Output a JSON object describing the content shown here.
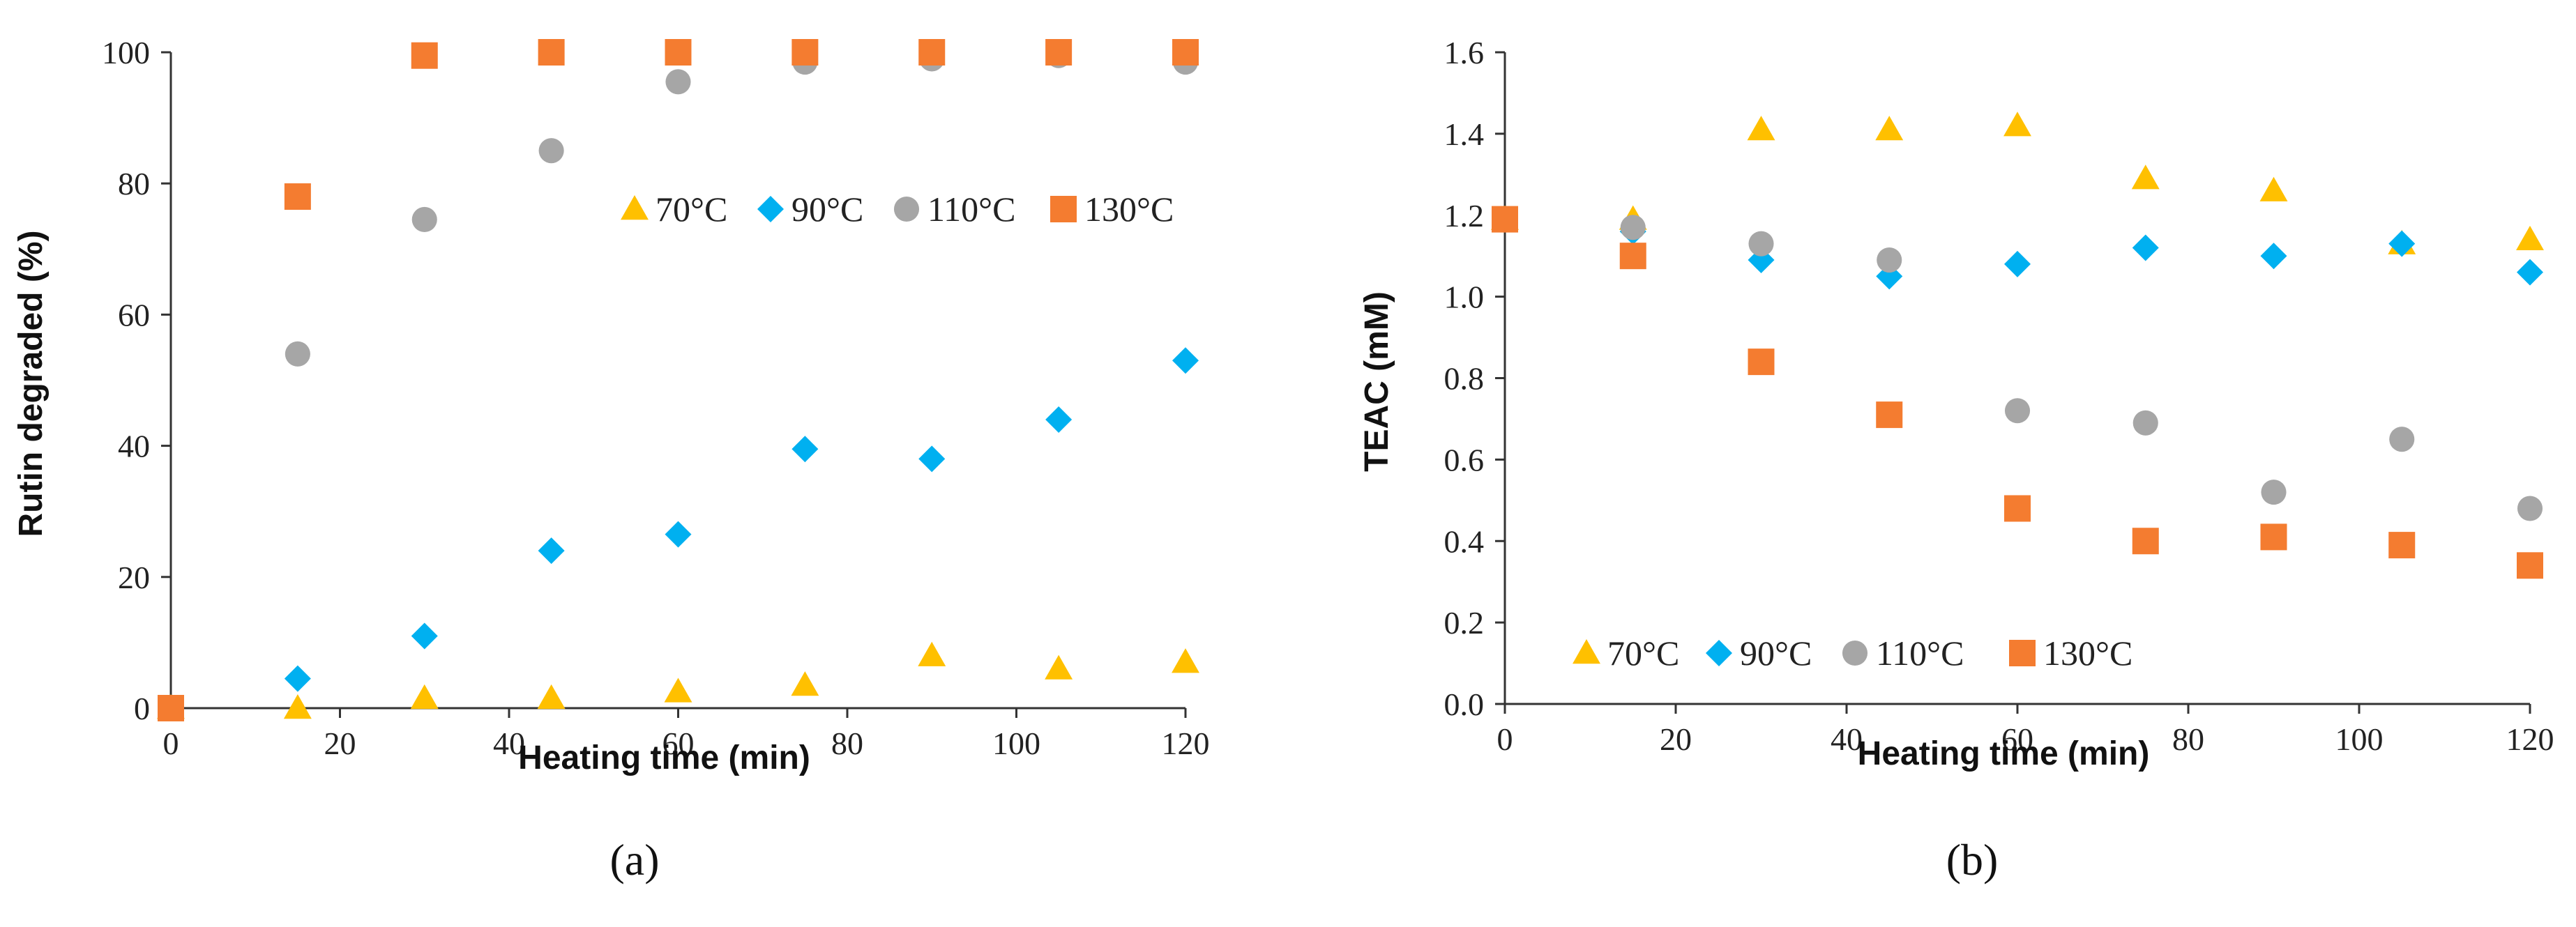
{
  "chart_data": [
    {
      "type": "scatter",
      "panel_label": "(a)",
      "title": "",
      "xlabel": "Heating time (min)",
      "ylabel": "Rutin degraded (%)",
      "xlim": [
        0,
        120
      ],
      "ylim": [
        0,
        100
      ],
      "xticks": [
        0,
        20,
        40,
        60,
        80,
        100,
        120
      ],
      "yticks": [
        0,
        20,
        40,
        60,
        80,
        100
      ],
      "x": [
        0,
        15,
        30,
        45,
        60,
        75,
        90,
        105,
        120
      ],
      "grid": false,
      "legend_position": "inside-right",
      "series": [
        {
          "name": "70°C",
          "marker": "triangle",
          "color": "#FFC000",
          "values": [
            0,
            0,
            1.5,
            1.5,
            2.5,
            3.5,
            8,
            6,
            7
          ]
        },
        {
          "name": "90°C",
          "marker": "diamond",
          "color": "#00B0F0",
          "values": [
            0,
            4.5,
            11,
            24,
            26.5,
            39.5,
            38,
            44,
            53
          ]
        },
        {
          "name": "110°C",
          "marker": "circle",
          "color": "#A6A6A6",
          "values": [
            0,
            54,
            74.5,
            85,
            95.5,
            98.5,
            99,
            99.5,
            98.5
          ]
        },
        {
          "name": "130°C",
          "marker": "square",
          "color": "#F47C30",
          "values": [
            0,
            78,
            99.5,
            100,
            100,
            100,
            100,
            100,
            100
          ]
        }
      ]
    },
    {
      "type": "scatter",
      "panel_label": "(b)",
      "title": "",
      "xlabel": "Heating time (min)",
      "ylabel": "TEAC (mM)",
      "xlim": [
        0,
        120
      ],
      "ylim": [
        0,
        1.6
      ],
      "xticks": [
        0,
        20,
        40,
        60,
        80,
        100,
        120
      ],
      "yticks": [
        0.0,
        0.2,
        0.4,
        0.6,
        0.8,
        1.0,
        1.2,
        1.4,
        1.6
      ],
      "x": [
        0,
        15,
        30,
        45,
        60,
        75,
        90,
        105,
        120
      ],
      "grid": false,
      "legend_position": "bottom-left",
      "series": [
        {
          "name": "70°C",
          "marker": "triangle",
          "color": "#FFC000",
          "values": [
            1.19,
            1.19,
            1.41,
            1.41,
            1.42,
            1.29,
            1.26,
            1.13,
            1.14
          ]
        },
        {
          "name": "90°C",
          "marker": "diamond",
          "color": "#00B0F0",
          "values": [
            1.19,
            1.16,
            1.09,
            1.05,
            1.08,
            1.12,
            1.1,
            1.13,
            1.06
          ]
        },
        {
          "name": "110°C",
          "marker": "circle",
          "color": "#A6A6A6",
          "values": [
            1.19,
            1.17,
            1.13,
            1.09,
            0.72,
            0.69,
            0.52,
            0.65,
            0.48
          ]
        },
        {
          "name": "130°C",
          "marker": "square",
          "color": "#F47C30",
          "values": [
            1.19,
            1.1,
            0.84,
            0.71,
            0.48,
            0.4,
            0.41,
            0.39,
            0.34
          ]
        }
      ]
    }
  ]
}
